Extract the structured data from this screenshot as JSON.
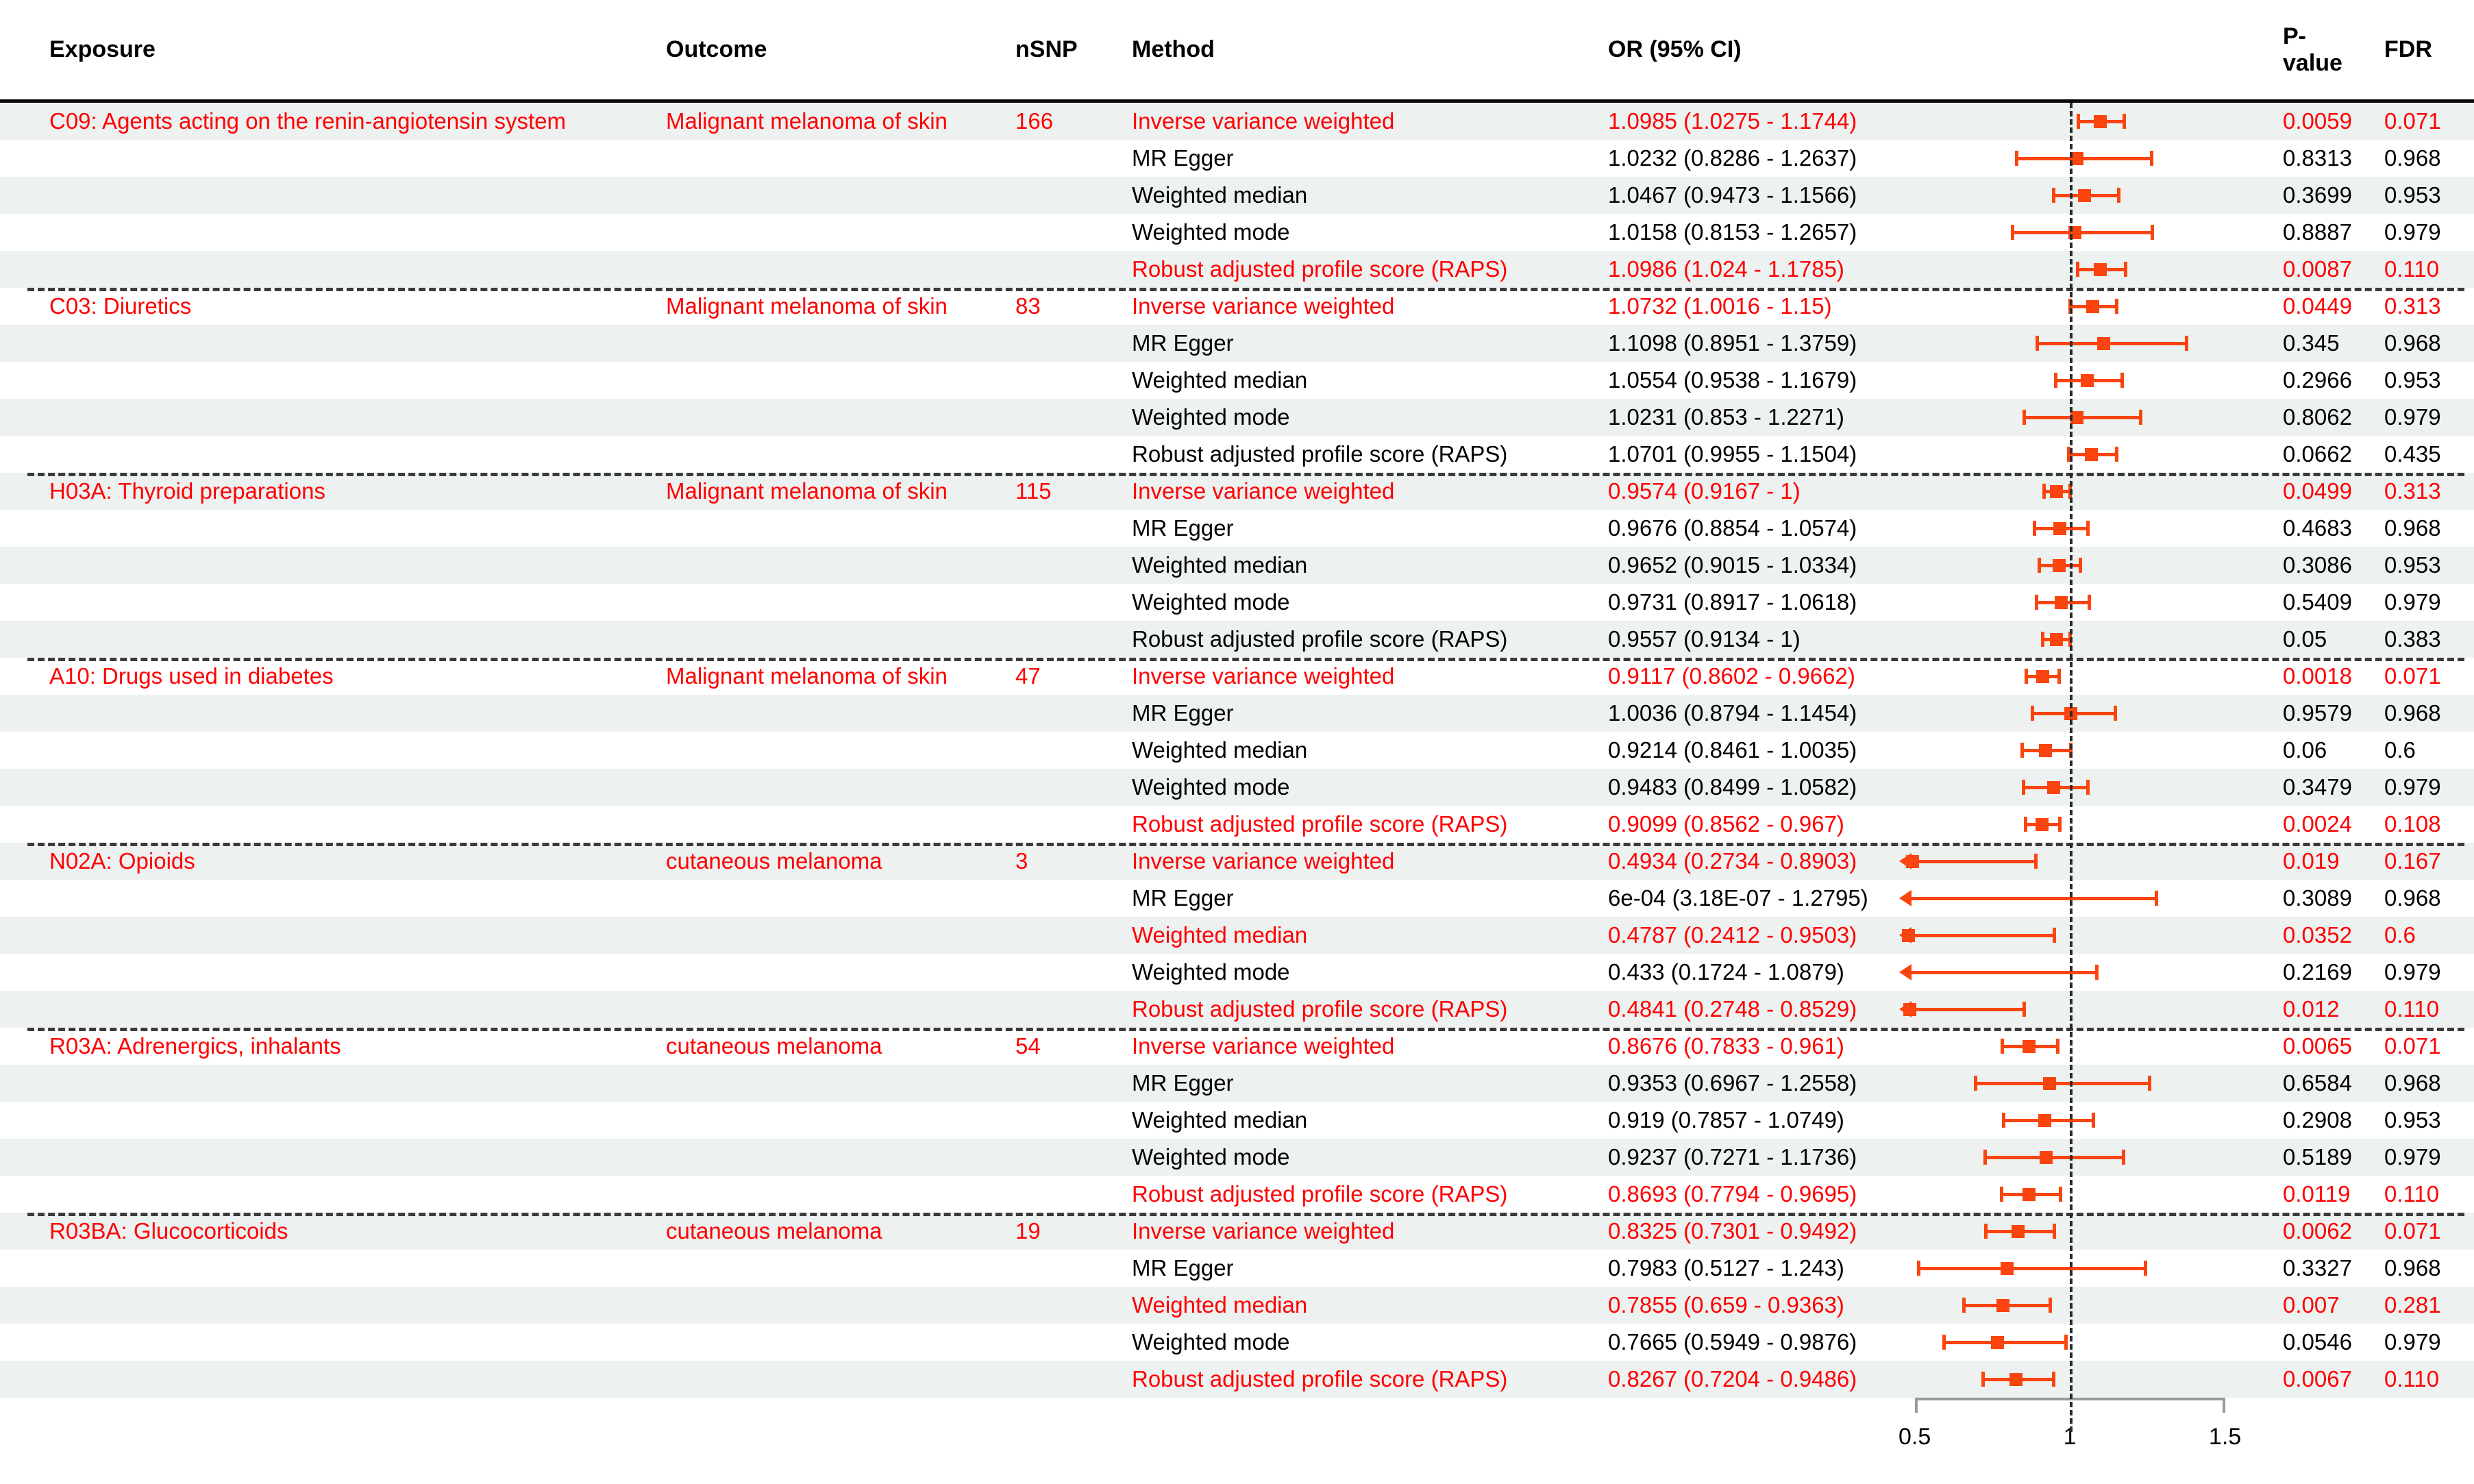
{
  "header": {
    "exposure": "Exposure",
    "outcome": "Outcome",
    "nsnp": "nSNP",
    "method": "Method",
    "or_ci": "OR (95% CI)",
    "pvalue": "P-value",
    "fdr": "FDR"
  },
  "colors": {
    "significant_text": "#ff0000",
    "normal_text": "#000000",
    "marker": "#fb4510",
    "stripe": "#edf1f0",
    "separator": "#3c3c3c",
    "ref_line": "#2b2b2b",
    "axis_line": "#9a9a9a"
  },
  "axis": {
    "domain": [
      0.45,
      1.62
    ],
    "ticks": [
      0.5,
      1,
      1.5
    ],
    "tick_labels": [
      "0.5",
      "1",
      "1.5"
    ],
    "ref_line": 1
  },
  "chart_data": {
    "type": "forest",
    "or_axis_ticks": [
      0.5,
      1,
      1.5
    ],
    "groups": [
      {
        "exposure": "C09: Agents acting on the renin-angiotensin system",
        "outcome": "Malignant melanoma of skin",
        "nsnp": "166",
        "rows": [
          {
            "method": "Inverse variance weighted",
            "or_ci": "1.0985 (1.0275 - 1.1744)",
            "or": 1.0985,
            "lo": 1.0275,
            "hi": 1.1744,
            "pvalue": "0.0059",
            "fdr": "0.071",
            "significant": true
          },
          {
            "method": "MR Egger",
            "or_ci": "1.0232 (0.8286 - 1.2637)",
            "or": 1.0232,
            "lo": 0.8286,
            "hi": 1.2637,
            "pvalue": "0.8313",
            "fdr": "0.968",
            "significant": false
          },
          {
            "method": "Weighted median",
            "or_ci": "1.0467 (0.9473 - 1.1566)",
            "or": 1.0467,
            "lo": 0.9473,
            "hi": 1.1566,
            "pvalue": "0.3699",
            "fdr": "0.953",
            "significant": false
          },
          {
            "method": "Weighted mode",
            "or_ci": "1.0158 (0.8153 - 1.2657)",
            "or": 1.0158,
            "lo": 0.8153,
            "hi": 1.2657,
            "pvalue": "0.8887",
            "fdr": "0.979",
            "significant": false
          },
          {
            "method": "Robust adjusted profile score (RAPS)",
            "or_ci": "1.0986 (1.024 - 1.1785)",
            "or": 1.0986,
            "lo": 1.024,
            "hi": 1.1785,
            "pvalue": "0.0087",
            "fdr": "0.110",
            "significant": true
          }
        ]
      },
      {
        "exposure": "C03: Diuretics",
        "outcome": "Malignant melanoma of skin",
        "nsnp": "83",
        "rows": [
          {
            "method": "Inverse variance weighted",
            "or_ci": "1.0732 (1.0016 - 1.15)",
            "or": 1.0732,
            "lo": 1.0016,
            "hi": 1.15,
            "pvalue": "0.0449",
            "fdr": "0.313",
            "significant": true
          },
          {
            "method": "MR Egger",
            "or_ci": "1.1098 (0.8951 - 1.3759)",
            "or": 1.1098,
            "lo": 0.8951,
            "hi": 1.3759,
            "pvalue": "0.345",
            "fdr": "0.968",
            "significant": false
          },
          {
            "method": "Weighted median",
            "or_ci": "1.0554 (0.9538 - 1.1679)",
            "or": 1.0554,
            "lo": 0.9538,
            "hi": 1.1679,
            "pvalue": "0.2966",
            "fdr": "0.953",
            "significant": false
          },
          {
            "method": "Weighted mode",
            "or_ci": "1.0231 (0.853 - 1.2271)",
            "or": 1.0231,
            "lo": 0.853,
            "hi": 1.2271,
            "pvalue": "0.8062",
            "fdr": "0.979",
            "significant": false
          },
          {
            "method": "Robust adjusted profile score (RAPS)",
            "or_ci": "1.0701 (0.9955 - 1.1504)",
            "or": 1.0701,
            "lo": 0.9955,
            "hi": 1.1504,
            "pvalue": "0.0662",
            "fdr": "0.435",
            "significant": false
          }
        ]
      },
      {
        "exposure": "H03A: Thyroid preparations",
        "outcome": "Malignant melanoma of skin",
        "nsnp": "115",
        "rows": [
          {
            "method": "Inverse variance weighted",
            "or_ci": "0.9574 (0.9167 - 1)",
            "or": 0.9574,
            "lo": 0.9167,
            "hi": 1.0,
            "pvalue": "0.0499",
            "fdr": "0.313",
            "significant": true
          },
          {
            "method": "MR Egger",
            "or_ci": "0.9676 (0.8854 - 1.0574)",
            "or": 0.9676,
            "lo": 0.8854,
            "hi": 1.0574,
            "pvalue": "0.4683",
            "fdr": "0.968",
            "significant": false
          },
          {
            "method": "Weighted median",
            "or_ci": "0.9652 (0.9015 - 1.0334)",
            "or": 0.9652,
            "lo": 0.9015,
            "hi": 1.0334,
            "pvalue": "0.3086",
            "fdr": "0.953",
            "significant": false
          },
          {
            "method": "Weighted mode",
            "or_ci": "0.9731 (0.8917 - 1.0618)",
            "or": 0.9731,
            "lo": 0.8917,
            "hi": 1.0618,
            "pvalue": "0.5409",
            "fdr": "0.979",
            "significant": false
          },
          {
            "method": "Robust adjusted profile score (RAPS)",
            "or_ci": "0.9557 (0.9134 - 1)",
            "or": 0.9557,
            "lo": 0.9134,
            "hi": 1.0,
            "pvalue": "0.05",
            "fdr": "0.383",
            "significant": false
          }
        ]
      },
      {
        "exposure": "A10: Drugs used in diabetes",
        "outcome": "Malignant melanoma of skin",
        "nsnp": "47",
        "rows": [
          {
            "method": "Inverse variance weighted",
            "or_ci": "0.9117 (0.8602 - 0.9662)",
            "or": 0.9117,
            "lo": 0.8602,
            "hi": 0.9662,
            "pvalue": "0.0018",
            "fdr": "0.071",
            "significant": true
          },
          {
            "method": "MR Egger",
            "or_ci": "1.0036 (0.8794 - 1.1454)",
            "or": 1.0036,
            "lo": 0.8794,
            "hi": 1.1454,
            "pvalue": "0.9579",
            "fdr": "0.968",
            "significant": false
          },
          {
            "method": "Weighted median",
            "or_ci": "0.9214 (0.8461 - 1.0035)",
            "or": 0.9214,
            "lo": 0.8461,
            "hi": 1.0035,
            "pvalue": "0.06",
            "fdr": "0.6",
            "significant": false
          },
          {
            "method": "Weighted mode",
            "or_ci": "0.9483 (0.8499 - 1.0582)",
            "or": 0.9483,
            "lo": 0.8499,
            "hi": 1.0582,
            "pvalue": "0.3479",
            "fdr": "0.979",
            "significant": false
          },
          {
            "method": "Robust adjusted profile score (RAPS)",
            "or_ci": "0.9099 (0.8562 - 0.967)",
            "or": 0.9099,
            "lo": 0.8562,
            "hi": 0.967,
            "pvalue": "0.0024",
            "fdr": "0.108",
            "significant": true
          }
        ]
      },
      {
        "exposure": "N02A: Opioids",
        "outcome": "cutaneous melanoma",
        "nsnp": "3",
        "rows": [
          {
            "method": "Inverse variance weighted",
            "or_ci": "0.4934 (0.2734 - 0.8903)",
            "or": 0.4934,
            "lo": 0.2734,
            "hi": 0.8903,
            "pvalue": "0.019",
            "fdr": "0.167",
            "significant": true
          },
          {
            "method": "MR Egger",
            "or_ci": "6e-04 (3.18E-07 - 1.2795)",
            "or": 0.0006,
            "lo": 3.18e-07,
            "hi": 1.2795,
            "pvalue": "0.3089",
            "fdr": "0.968",
            "significant": false
          },
          {
            "method": "Weighted median",
            "or_ci": "0.4787 (0.2412 - 0.9503)",
            "or": 0.4787,
            "lo": 0.2412,
            "hi": 0.9503,
            "pvalue": "0.0352",
            "fdr": "0.6",
            "significant": true
          },
          {
            "method": "Weighted mode",
            "or_ci": "0.433 (0.1724 - 1.0879)",
            "or": 0.433,
            "lo": 0.1724,
            "hi": 1.0879,
            "pvalue": "0.2169",
            "fdr": "0.979",
            "significant": false
          },
          {
            "method": "Robust adjusted profile score (RAPS)",
            "or_ci": "0.4841 (0.2748 - 0.8529)",
            "or": 0.4841,
            "lo": 0.2748,
            "hi": 0.8529,
            "pvalue": "0.012",
            "fdr": "0.110",
            "significant": true
          }
        ]
      },
      {
        "exposure": "R03A: Adrenergics, inhalants",
        "outcome": "cutaneous melanoma",
        "nsnp": "54",
        "rows": [
          {
            "method": "Inverse variance weighted",
            "or_ci": "0.8676 (0.7833 - 0.961)",
            "or": 0.8676,
            "lo": 0.7833,
            "hi": 0.961,
            "pvalue": "0.0065",
            "fdr": "0.071",
            "significant": true
          },
          {
            "method": "MR Egger",
            "or_ci": "0.9353 (0.6967 - 1.2558)",
            "or": 0.9353,
            "lo": 0.6967,
            "hi": 1.2558,
            "pvalue": "0.6584",
            "fdr": "0.968",
            "significant": false
          },
          {
            "method": "Weighted median",
            "or_ci": "0.919 (0.7857 - 1.0749)",
            "or": 0.919,
            "lo": 0.7857,
            "hi": 1.0749,
            "pvalue": "0.2908",
            "fdr": "0.953",
            "significant": false
          },
          {
            "method": "Weighted mode",
            "or_ci": "0.9237 (0.7271 - 1.1736)",
            "or": 0.9237,
            "lo": 0.7271,
            "hi": 1.1736,
            "pvalue": "0.5189",
            "fdr": "0.979",
            "significant": false
          },
          {
            "method": "Robust adjusted profile score (RAPS)",
            "or_ci": "0.8693 (0.7794 - 0.9695)",
            "or": 0.8693,
            "lo": 0.7794,
            "hi": 0.9695,
            "pvalue": "0.0119",
            "fdr": "0.110",
            "significant": true
          }
        ]
      },
      {
        "exposure": "R03BA: Glucocorticoids",
        "outcome": "cutaneous melanoma",
        "nsnp": "19",
        "rows": [
          {
            "method": "Inverse variance weighted",
            "or_ci": "0.8325 (0.7301 - 0.9492)",
            "or": 0.8325,
            "lo": 0.7301,
            "hi": 0.9492,
            "pvalue": "0.0062",
            "fdr": "0.071",
            "significant": true
          },
          {
            "method": "MR Egger",
            "or_ci": "0.7983 (0.5127 - 1.243)",
            "or": 0.7983,
            "lo": 0.5127,
            "hi": 1.243,
            "pvalue": "0.3327",
            "fdr": "0.968",
            "significant": false
          },
          {
            "method": "Weighted median",
            "or_ci": "0.7855 (0.659 - 0.9363)",
            "or": 0.7855,
            "lo": 0.659,
            "hi": 0.9363,
            "pvalue": "0.007",
            "fdr": "0.281",
            "significant": true
          },
          {
            "method": "Weighted mode",
            "or_ci": "0.7665 (0.5949 - 0.9876)",
            "or": 0.7665,
            "lo": 0.5949,
            "hi": 0.9876,
            "pvalue": "0.0546",
            "fdr": "0.979",
            "significant": false
          },
          {
            "method": "Robust adjusted profile score (RAPS)",
            "or_ci": "0.8267 (0.7204 - 0.9486)",
            "or": 0.8267,
            "lo": 0.7204,
            "hi": 0.9486,
            "pvalue": "0.0067",
            "fdr": "0.110",
            "significant": true
          }
        ]
      }
    ]
  }
}
